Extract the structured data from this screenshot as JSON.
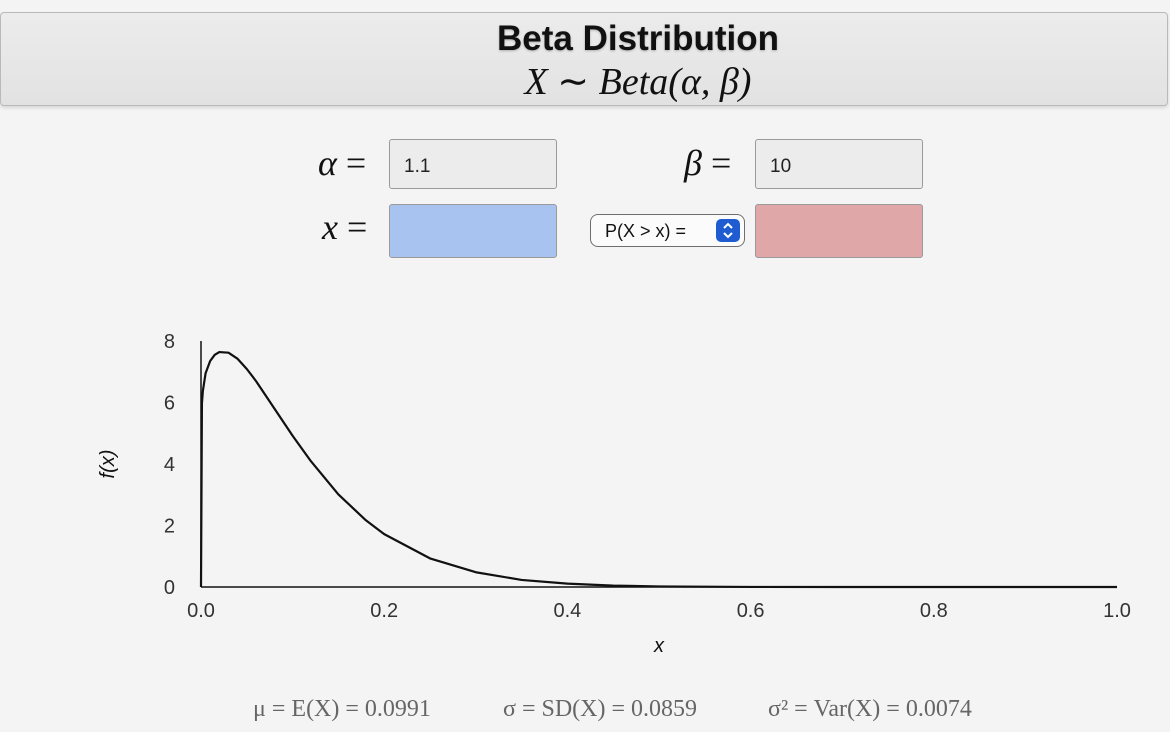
{
  "header": {
    "title": "Beta Distribution",
    "subtitle_var": "X",
    "subtitle_tilde": "∼",
    "subtitle_dist": "Beta(α, β)"
  },
  "inputs": {
    "alpha_label": "α",
    "alpha_value": "1.1",
    "beta_label": "β",
    "beta_value": "10",
    "x_label": "x",
    "x_value": "",
    "prob_value": "",
    "equals": "="
  },
  "probability_select": {
    "selected": "P(X > x) =",
    "options": [
      "P(X > x) ="
    ]
  },
  "colors": {
    "x_field": "#a9c3f1",
    "prob_field": "#e0a7a8",
    "select_accent": "#1f5bd1",
    "curve": "#111111"
  },
  "stats": {
    "mean": "μ = E(X) = 0.0991",
    "sd": "σ = SD(X) = 0.0859",
    "var": "σ² = Var(X) = 0.0074"
  },
  "chart_data": {
    "type": "line",
    "xlabel": "x",
    "ylabel": "f(x)",
    "xlim": [
      0,
      1
    ],
    "ylim": [
      0,
      8
    ],
    "x_ticks": [
      "0.0",
      "0.2",
      "0.4",
      "0.6",
      "0.8",
      "1.0"
    ],
    "y_ticks": [
      "0",
      "2",
      "4",
      "6",
      "8"
    ],
    "grid": false,
    "series": [
      {
        "x": [
          0,
          0.001,
          0.002,
          0.005,
          0.01,
          0.015,
          0.02,
          0.03,
          0.04,
          0.05,
          0.06,
          0.08,
          0.1,
          0.12,
          0.15,
          0.18,
          0.2,
          0.25,
          0.3,
          0.35,
          0.4,
          0.45,
          0.5,
          0.6,
          0.7,
          0.8,
          0.9,
          1.0
        ],
        "y": [
          0,
          5.96,
          6.37,
          6.95,
          7.35,
          7.55,
          7.64,
          7.62,
          7.42,
          7.09,
          6.7,
          5.81,
          4.92,
          4.09,
          3.01,
          2.17,
          1.72,
          0.93,
          0.48,
          0.23,
          0.11,
          0.045,
          0.018,
          0.002,
          0.0001,
          0,
          0,
          0
        ]
      }
    ]
  }
}
